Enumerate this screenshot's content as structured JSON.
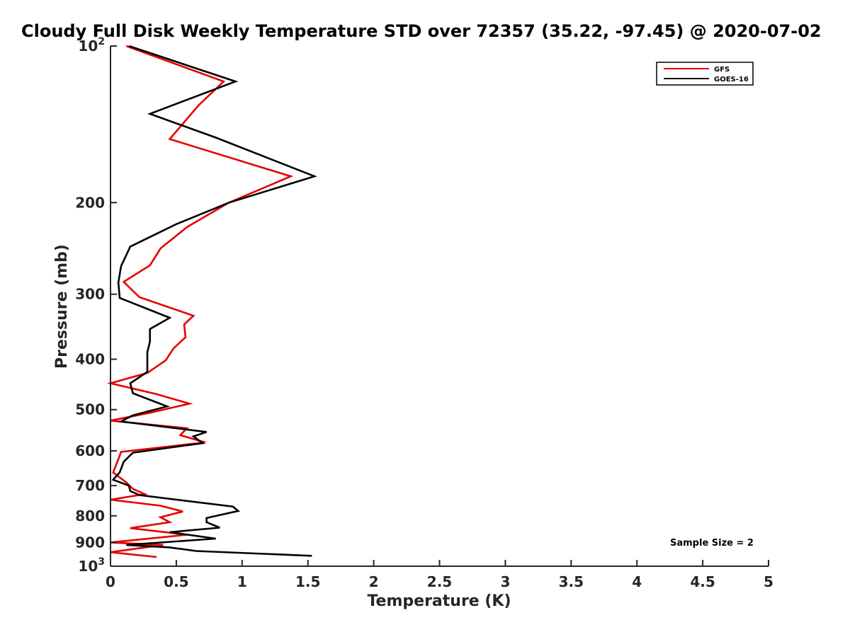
{
  "chart_data": {
    "type": "line",
    "title": "Cloudy Full Disk Weekly Temperature STD over 72357 (35.22, -97.45) @ 2020-07-02",
    "xlabel": "Temperature (K)",
    "ylabel": "Pressure (mb)",
    "xlim": [
      0,
      5
    ],
    "ylim": [
      100,
      1000
    ],
    "y_scale": "log",
    "y_reversed": true,
    "grid": false,
    "legend_position": "top-right",
    "x_ticks": [
      {
        "value": 0,
        "label": "0"
      },
      {
        "value": 0.5,
        "label": "0.5"
      },
      {
        "value": 1,
        "label": "1"
      },
      {
        "value": 1.5,
        "label": "1.5"
      },
      {
        "value": 2,
        "label": "2"
      },
      {
        "value": 2.5,
        "label": "2.5"
      },
      {
        "value": 3,
        "label": "3"
      },
      {
        "value": 3.5,
        "label": "3.5"
      },
      {
        "value": 4,
        "label": "4"
      },
      {
        "value": 4.5,
        "label": "4.5"
      },
      {
        "value": 5,
        "label": "5"
      }
    ],
    "y_ticks": [
      {
        "value": 100,
        "base": "10",
        "exp": "2"
      },
      {
        "value": 200,
        "label": "200"
      },
      {
        "value": 300,
        "label": "300"
      },
      {
        "value": 400,
        "label": "400"
      },
      {
        "value": 500,
        "label": "500"
      },
      {
        "value": 600,
        "label": "600"
      },
      {
        "value": 700,
        "label": "700"
      },
      {
        "value": 800,
        "label": "800"
      },
      {
        "value": 900,
        "label": "900"
      },
      {
        "value": 1000,
        "base": "10",
        "exp": "3"
      }
    ],
    "series": [
      {
        "name": "GFS",
        "color": "#e60000",
        "points": [
          {
            "x": 0.12,
            "y": 100
          },
          {
            "x": 0.86,
            "y": 117
          },
          {
            "x": 0.67,
            "y": 130
          },
          {
            "x": 0.45,
            "y": 151
          },
          {
            "x": 1.37,
            "y": 178
          },
          {
            "x": 0.9,
            "y": 200
          },
          {
            "x": 0.58,
            "y": 223
          },
          {
            "x": 0.38,
            "y": 245
          },
          {
            "x": 0.3,
            "y": 264
          },
          {
            "x": 0.1,
            "y": 284
          },
          {
            "x": 0.22,
            "y": 304
          },
          {
            "x": 0.63,
            "y": 330
          },
          {
            "x": 0.56,
            "y": 343
          },
          {
            "x": 0.57,
            "y": 363
          },
          {
            "x": 0.48,
            "y": 381
          },
          {
            "x": 0.42,
            "y": 402
          },
          {
            "x": 0.28,
            "y": 425
          },
          {
            "x": 0.0,
            "y": 445
          },
          {
            "x": 0.35,
            "y": 467
          },
          {
            "x": 0.6,
            "y": 487
          },
          {
            "x": 0.3,
            "y": 507
          },
          {
            "x": 0.0,
            "y": 525
          },
          {
            "x": 0.58,
            "y": 543
          },
          {
            "x": 0.53,
            "y": 560
          },
          {
            "x": 0.72,
            "y": 578
          },
          {
            "x": 0.08,
            "y": 603
          },
          {
            "x": 0.05,
            "y": 632
          },
          {
            "x": 0.02,
            "y": 660
          },
          {
            "x": 0.12,
            "y": 690
          },
          {
            "x": 0.17,
            "y": 710
          },
          {
            "x": 0.26,
            "y": 727
          },
          {
            "x": 0.0,
            "y": 745
          },
          {
            "x": 0.38,
            "y": 765
          },
          {
            "x": 0.55,
            "y": 785
          },
          {
            "x": 0.38,
            "y": 805
          },
          {
            "x": 0.45,
            "y": 823
          },
          {
            "x": 0.15,
            "y": 845
          },
          {
            "x": 0.58,
            "y": 870
          },
          {
            "x": 0.0,
            "y": 900
          },
          {
            "x": 0.4,
            "y": 910
          },
          {
            "x": 0.0,
            "y": 940
          },
          {
            "x": 0.35,
            "y": 960
          }
        ]
      },
      {
        "name": "GOES-16",
        "color": "#000000",
        "points": [
          {
            "x": 0.14,
            "y": 100
          },
          {
            "x": 0.95,
            "y": 117
          },
          {
            "x": 0.3,
            "y": 135
          },
          {
            "x": 0.8,
            "y": 150
          },
          {
            "x": 1.55,
            "y": 178
          },
          {
            "x": 0.9,
            "y": 200
          },
          {
            "x": 0.5,
            "y": 220
          },
          {
            "x": 0.15,
            "y": 243
          },
          {
            "x": 0.08,
            "y": 265
          },
          {
            "x": 0.06,
            "y": 285
          },
          {
            "x": 0.07,
            "y": 305
          },
          {
            "x": 0.45,
            "y": 333
          },
          {
            "x": 0.3,
            "y": 350
          },
          {
            "x": 0.3,
            "y": 370
          },
          {
            "x": 0.28,
            "y": 388
          },
          {
            "x": 0.28,
            "y": 423
          },
          {
            "x": 0.15,
            "y": 445
          },
          {
            "x": 0.17,
            "y": 465
          },
          {
            "x": 0.43,
            "y": 493
          },
          {
            "x": 0.17,
            "y": 513
          },
          {
            "x": 0.08,
            "y": 527
          },
          {
            "x": 0.73,
            "y": 552
          },
          {
            "x": 0.63,
            "y": 563
          },
          {
            "x": 0.7,
            "y": 580
          },
          {
            "x": 0.17,
            "y": 605
          },
          {
            "x": 0.1,
            "y": 630
          },
          {
            "x": 0.07,
            "y": 660
          },
          {
            "x": 0.02,
            "y": 682
          },
          {
            "x": 0.14,
            "y": 700
          },
          {
            "x": 0.15,
            "y": 717
          },
          {
            "x": 0.22,
            "y": 730
          },
          {
            "x": 0.93,
            "y": 768
          },
          {
            "x": 0.97,
            "y": 783
          },
          {
            "x": 0.73,
            "y": 808
          },
          {
            "x": 0.73,
            "y": 823
          },
          {
            "x": 0.83,
            "y": 843
          },
          {
            "x": 0.45,
            "y": 860
          },
          {
            "x": 0.8,
            "y": 885
          },
          {
            "x": 0.12,
            "y": 910
          },
          {
            "x": 0.45,
            "y": 920
          },
          {
            "x": 0.65,
            "y": 935
          },
          {
            "x": 1.53,
            "y": 955
          }
        ]
      }
    ],
    "annotation": "Sample Size = 2"
  }
}
